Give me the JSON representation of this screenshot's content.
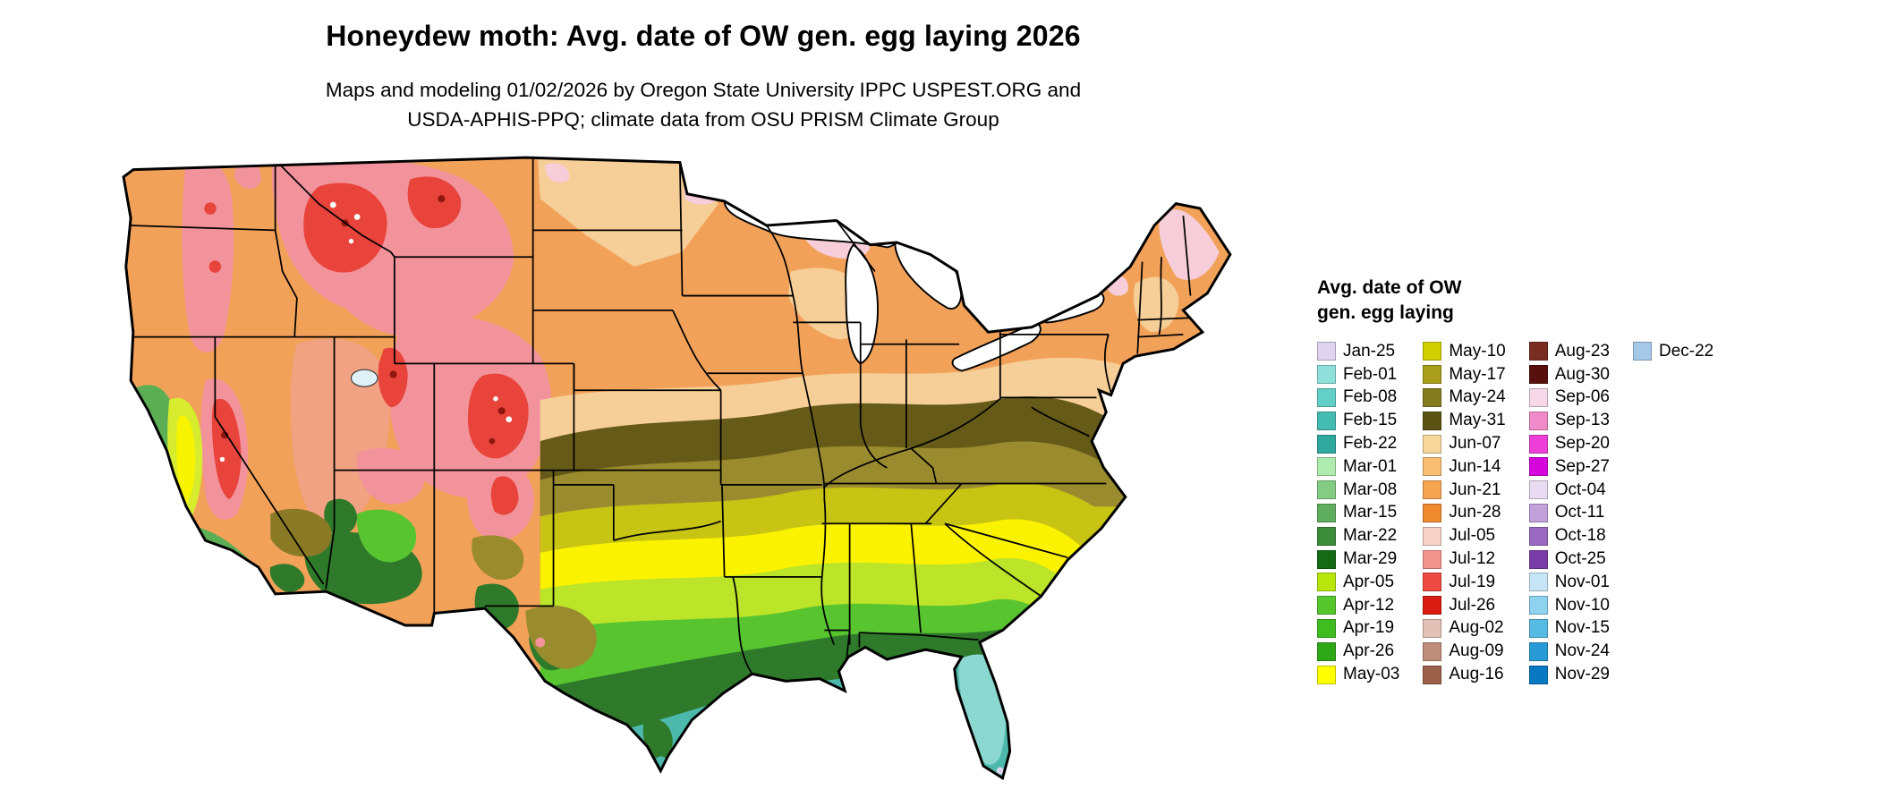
{
  "header": {
    "title": "Honeydew moth: Avg. date of OW gen. egg laying 2026",
    "subtitle_line1": "Maps and modeling 01/02/2026 by Oregon State University IPPC USPEST.ORG and",
    "subtitle_line2": "USDA-APHIS-PPQ; climate data from OSU PRISM Climate Group"
  },
  "legend": {
    "title_line1": "Avg. date of OW",
    "title_line2": "gen. egg laying",
    "columns": [
      {
        "items": [
          {
            "label": "Jan-25",
            "color": "#DED4F0"
          },
          {
            "label": "Feb-01",
            "color": "#8FE0DA"
          },
          {
            "label": "Feb-08",
            "color": "#63CFC6"
          },
          {
            "label": "Feb-15",
            "color": "#45BCB2"
          },
          {
            "label": "Feb-22",
            "color": "#2FA89E"
          },
          {
            "label": "Mar-01",
            "color": "#AFEAAF"
          },
          {
            "label": "Mar-08",
            "color": "#84CC84"
          },
          {
            "label": "Mar-15",
            "color": "#5FAE5F"
          },
          {
            "label": "Mar-22",
            "color": "#3C8C3C"
          },
          {
            "label": "Mar-29",
            "color": "#156B15"
          },
          {
            "label": "Apr-05",
            "color": "#B8E60A"
          },
          {
            "label": "Apr-12",
            "color": "#55C62B"
          },
          {
            "label": "Apr-19",
            "color": "#3FBC1F"
          },
          {
            "label": "Apr-26",
            "color": "#2FA818"
          },
          {
            "label": "May-03",
            "color": "#FFFF00"
          }
        ]
      },
      {
        "items": [
          {
            "label": "May-10",
            "color": "#D0D000"
          },
          {
            "label": "May-17",
            "color": "#A89E1A"
          },
          {
            "label": "May-24",
            "color": "#847A20"
          },
          {
            "label": "May-31",
            "color": "#5A5212"
          },
          {
            "label": "Jun-07",
            "color": "#F7D79C"
          },
          {
            "label": "Jun-14",
            "color": "#F7BE74"
          },
          {
            "label": "Jun-21",
            "color": "#F5A450"
          },
          {
            "label": "Jun-28",
            "color": "#F08A2E"
          },
          {
            "label": "Jul-05",
            "color": "#F8D2C8"
          },
          {
            "label": "Jul-12",
            "color": "#F3938E"
          },
          {
            "label": "Jul-19",
            "color": "#EE4B42"
          },
          {
            "label": "Jul-26",
            "color": "#D81C12"
          },
          {
            "label": "Aug-02",
            "color": "#E2C2B4"
          },
          {
            "label": "Aug-09",
            "color": "#BE8E7A"
          },
          {
            "label": "Aug-16",
            "color": "#9C5F4A"
          }
        ]
      },
      {
        "items": [
          {
            "label": "Aug-23",
            "color": "#7A2E22"
          },
          {
            "label": "Aug-30",
            "color": "#58100C"
          },
          {
            "label": "Sep-06",
            "color": "#F7D8E8"
          },
          {
            "label": "Sep-13",
            "color": "#F08AC8"
          },
          {
            "label": "Sep-20",
            "color": "#EE3ED8"
          },
          {
            "label": "Sep-27",
            "color": "#D605DC"
          },
          {
            "label": "Oct-04",
            "color": "#E9DCF2"
          },
          {
            "label": "Oct-11",
            "color": "#C2A0DA"
          },
          {
            "label": "Oct-18",
            "color": "#9B68C0"
          },
          {
            "label": "Oct-25",
            "color": "#7A3CA6"
          },
          {
            "label": "Nov-01",
            "color": "#C6E6F7"
          },
          {
            "label": "Nov-10",
            "color": "#8FD2EF"
          },
          {
            "label": "Nov-15",
            "color": "#57BAE2"
          },
          {
            "label": "Nov-24",
            "color": "#289AD6"
          },
          {
            "label": "Nov-29",
            "color": "#0878C2"
          }
        ]
      },
      {
        "items": [
          {
            "label": "Dec-22",
            "color": "#A6C8E8"
          }
        ]
      }
    ]
  }
}
